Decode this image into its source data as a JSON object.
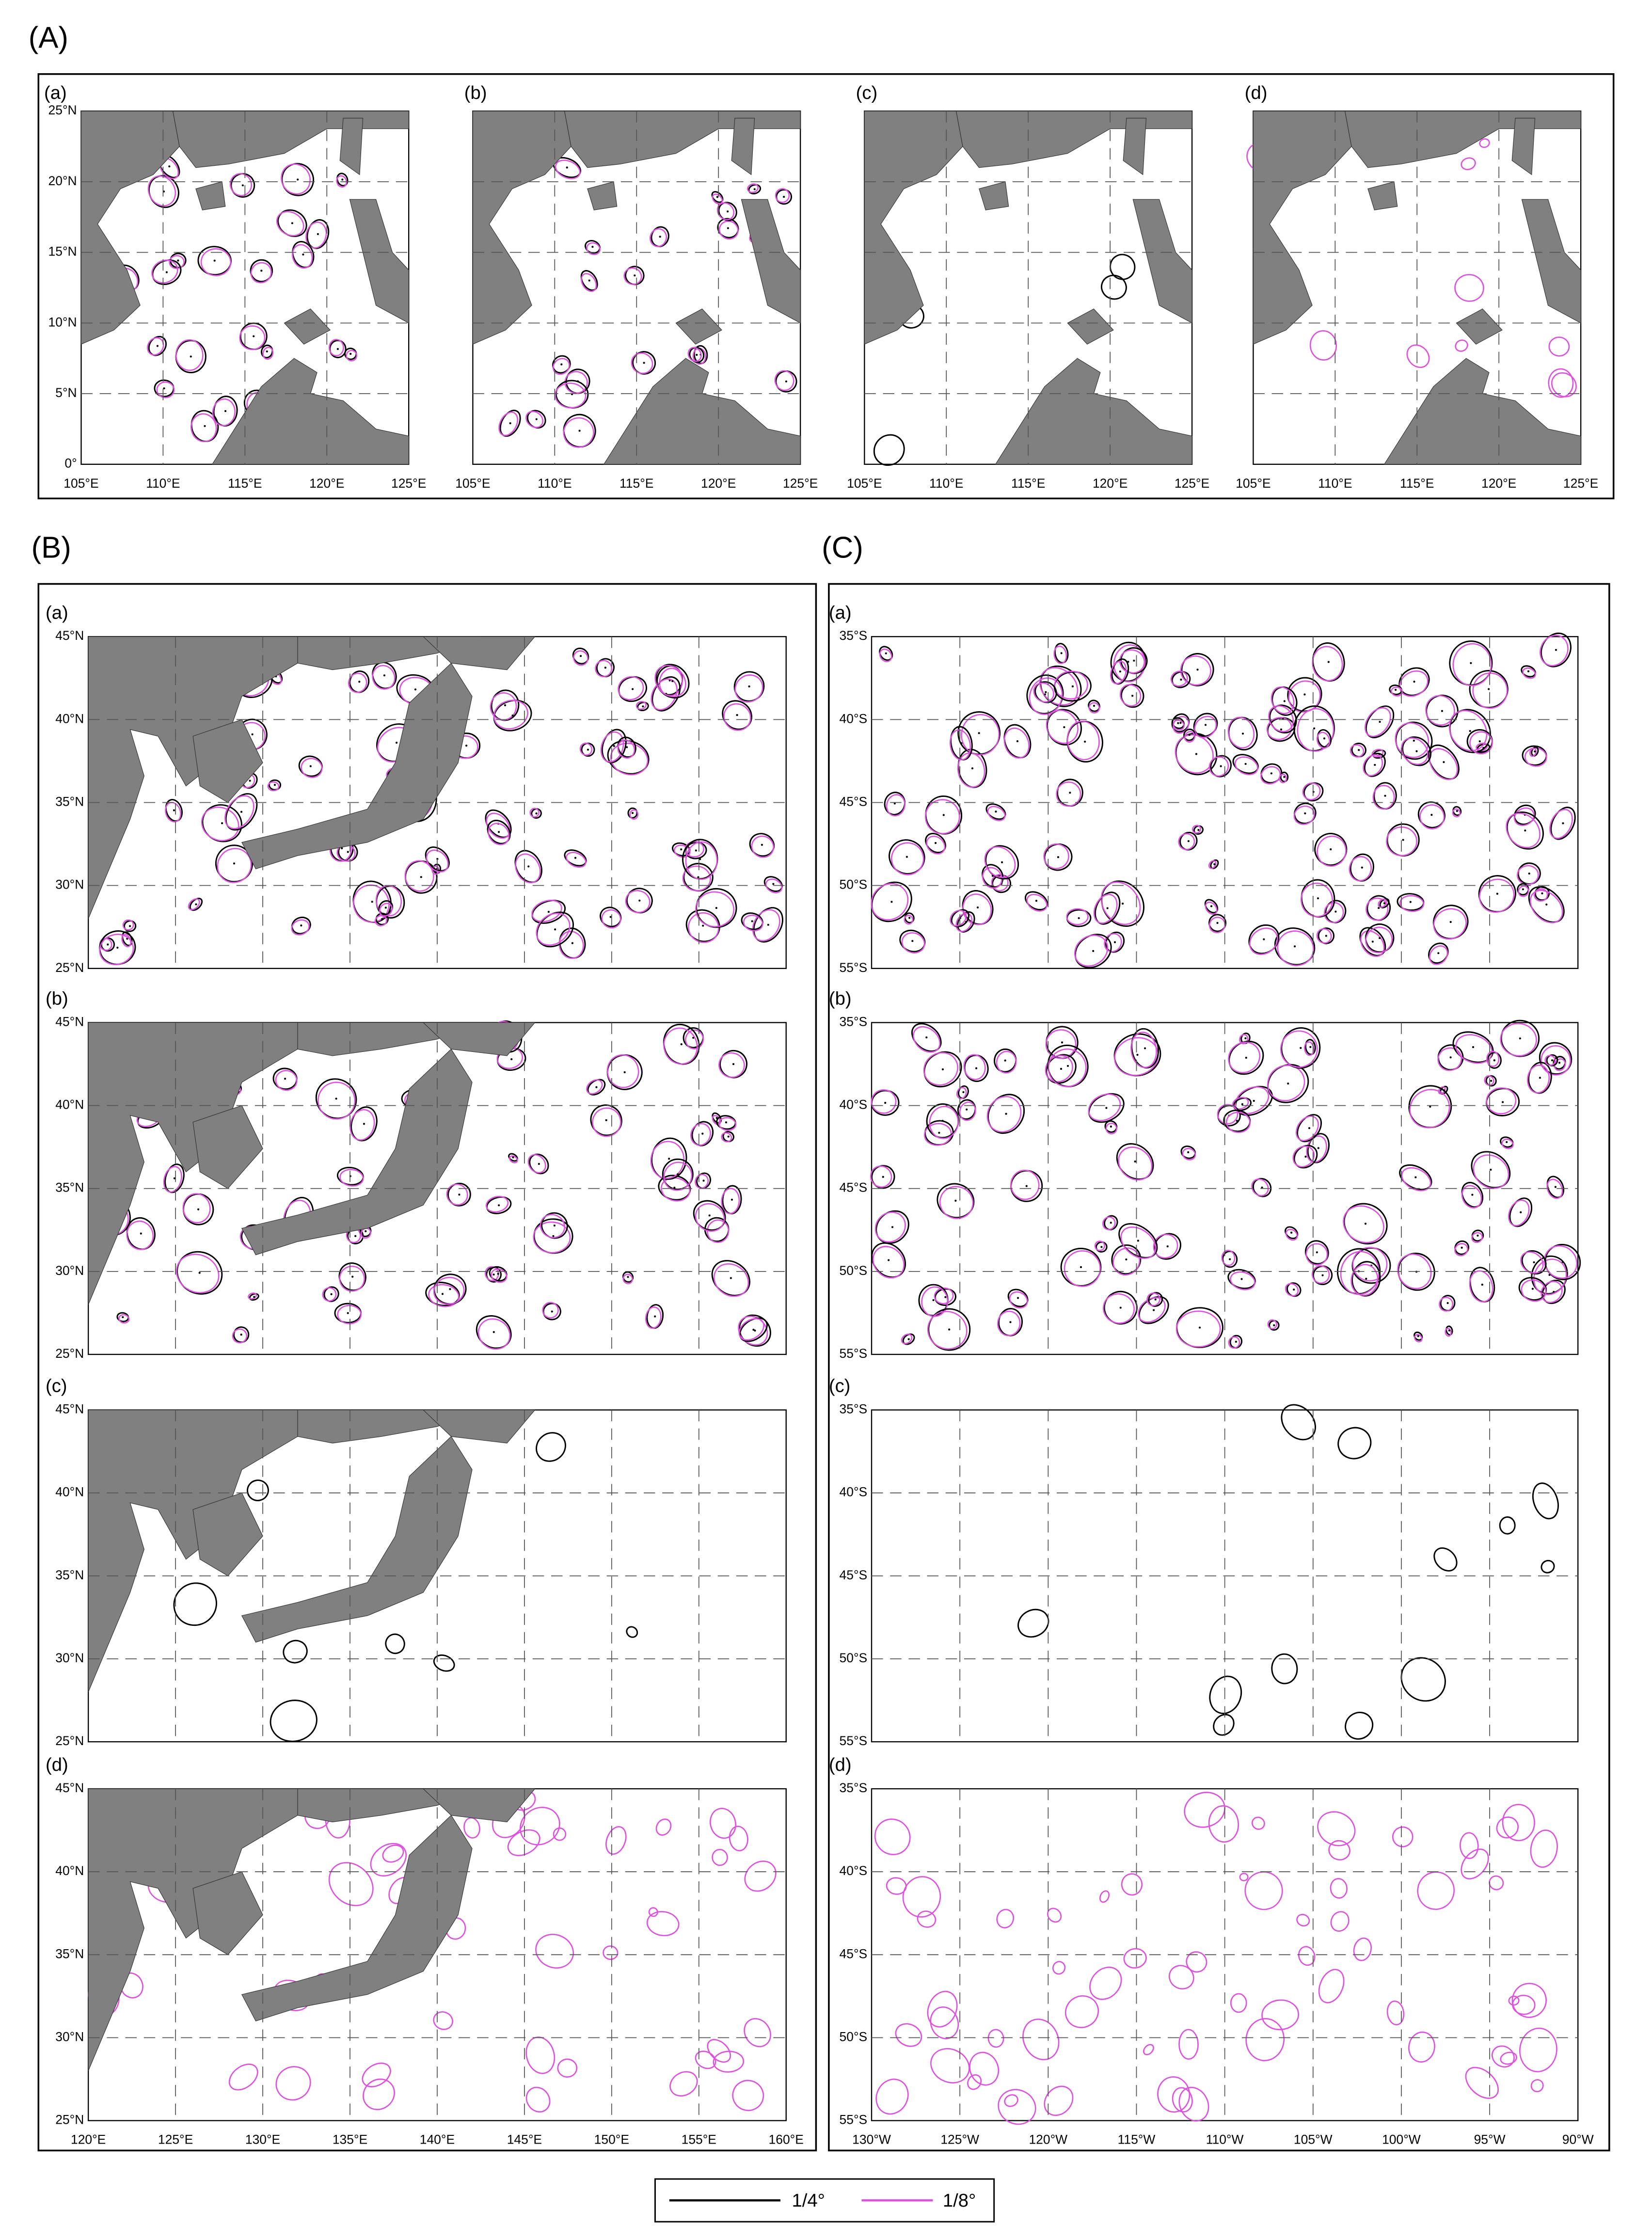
{
  "panels": [
    {
      "label": "(A)",
      "subpanels": [
        "(a)",
        "(b)",
        "(c)",
        "(d)"
      ],
      "lat_ticks": [
        "25°N",
        "20°N",
        "15°N",
        "10°N",
        "5°N",
        "0°"
      ],
      "lon_ticks": [
        "105°E",
        "110°E",
        "115°E",
        "120°E",
        "125°E"
      ]
    },
    {
      "label": "(B)",
      "subpanels": [
        "(a)",
        "(b)",
        "(c)",
        "(d)"
      ],
      "lat_ticks": [
        "45°N",
        "40°N",
        "35°N",
        "30°N",
        "25°N"
      ],
      "lon_ticks": [
        "120°E",
        "125°E",
        "130°E",
        "135°E",
        "140°E",
        "145°E",
        "150°E",
        "155°E",
        "160°E"
      ]
    },
    {
      "label": "(C)",
      "subpanels": [
        "(a)",
        "(b)",
        "(c)",
        "(d)"
      ],
      "lat_ticks": [
        "35°S",
        "40°S",
        "45°S",
        "50°S",
        "55°S"
      ],
      "lon_ticks": [
        "130°W",
        "125°W",
        "120°W",
        "115°W",
        "110°W",
        "105°W",
        "100°W",
        "95°W",
        "90°W"
      ]
    }
  ],
  "legend": [
    {
      "label": "1/4°",
      "color": "#000000"
    },
    {
      "label": "1/8°",
      "color": "#e050e0"
    }
  ]
}
